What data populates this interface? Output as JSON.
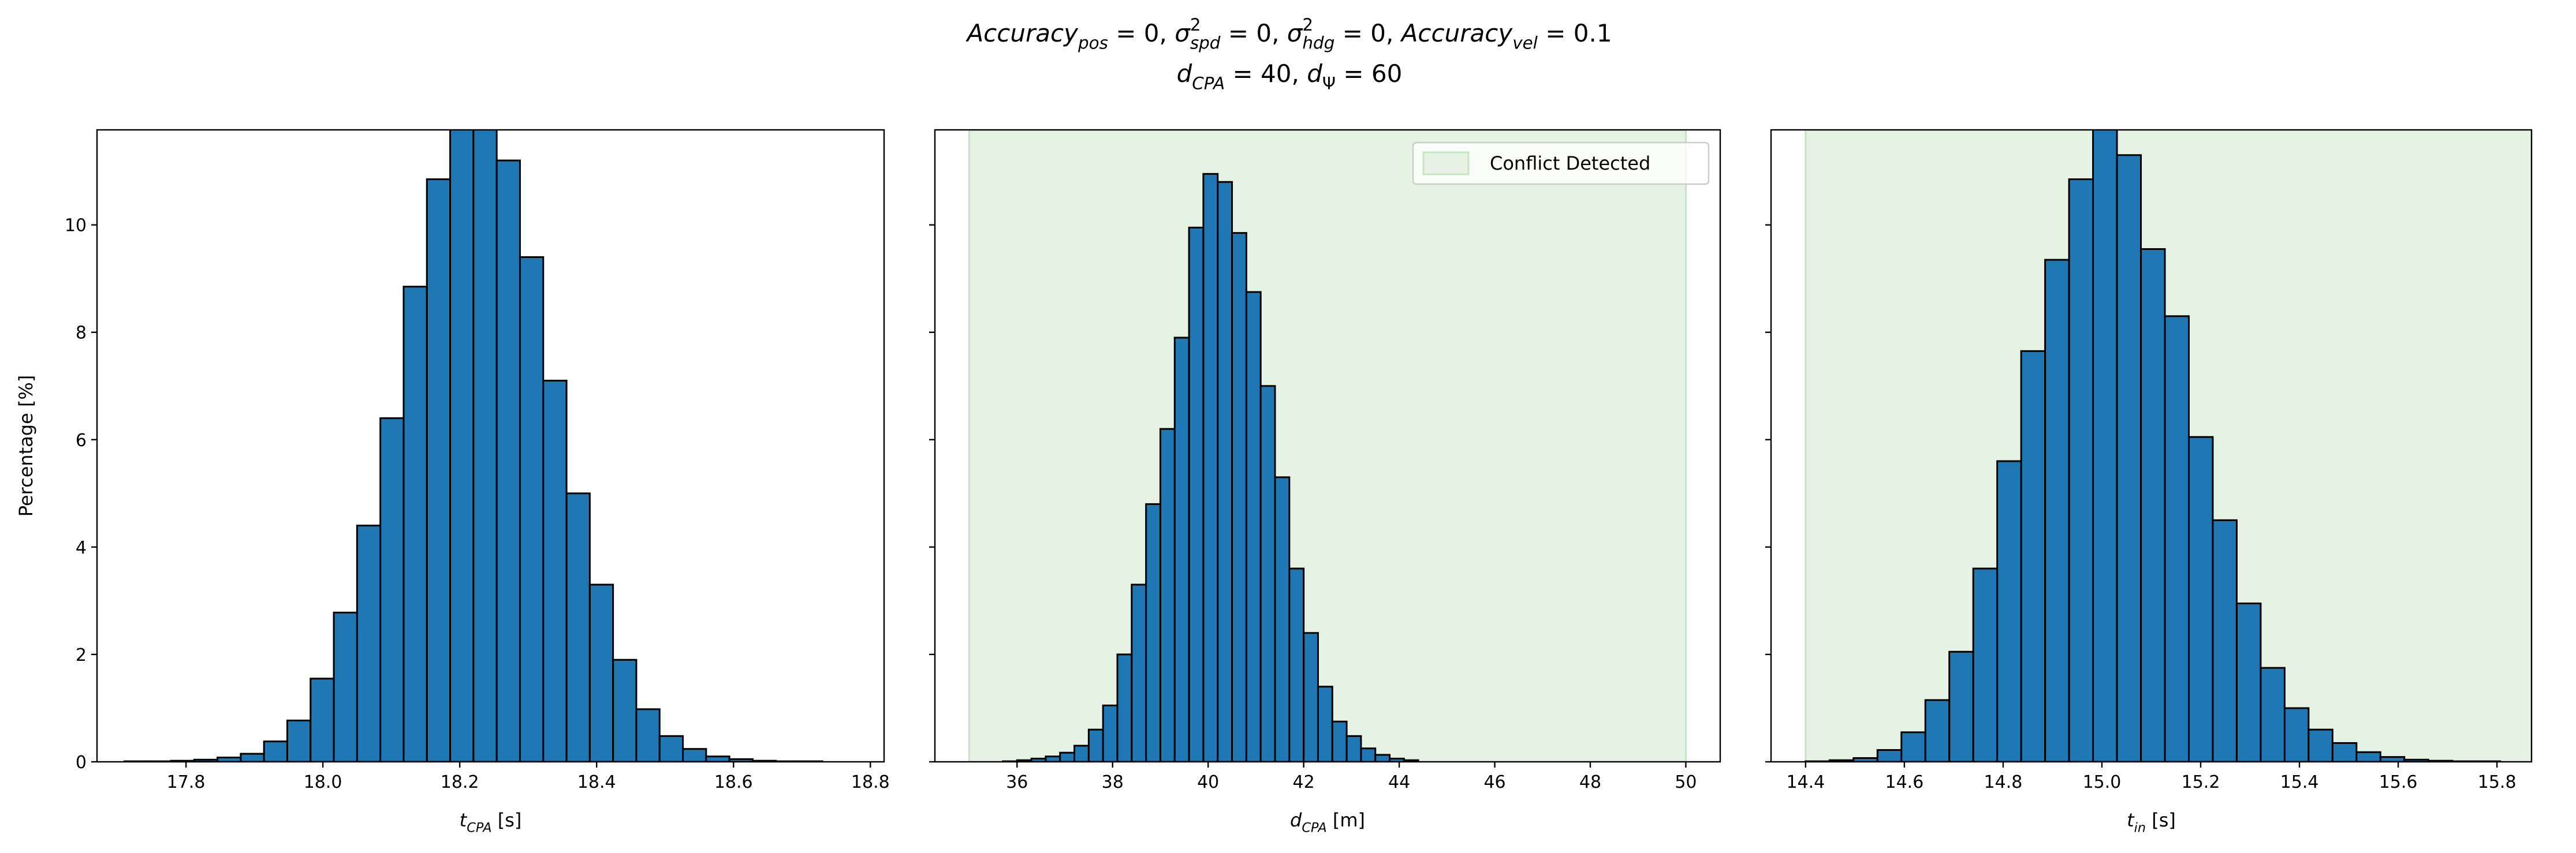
{
  "title": [
    [
      {
        "text": "Accuracy",
        "italic": true
      },
      {
        "text": "pos",
        "shift": "sub",
        "italic": true
      },
      {
        "text": " = 0, "
      },
      {
        "text": "σ",
        "italic": true
      },
      {
        "text": "2",
        "shift": "sup"
      },
      {
        "text": "spd",
        "shift": "sub",
        "italic": true
      },
      {
        "text": " = 0, "
      },
      {
        "text": "σ",
        "italic": true
      },
      {
        "text": "2",
        "shift": "sup"
      },
      {
        "text": "hdg",
        "shift": "sub",
        "italic": true
      },
      {
        "text": " = 0, "
      },
      {
        "text": "Accuracy",
        "italic": true
      },
      {
        "text": "vel",
        "shift": "sub",
        "italic": true
      },
      {
        "text": " = 0.1"
      }
    ],
    [
      {
        "text": "d",
        "italic": true
      },
      {
        "text": "CPA",
        "shift": "sub",
        "italic": true
      },
      {
        "text": " = 40, "
      },
      {
        "text": "d",
        "italic": true
      },
      {
        "text": "Ψ",
        "shift": "sub"
      },
      {
        "text": " = 60"
      }
    ]
  ],
  "chart_data": [
    {
      "type": "histogram",
      "color": "#1f77b4",
      "edgecolor": "#000000",
      "ylabel": "Percentage [%]",
      "xlabel": [
        {
          "text": "t",
          "italic": true
        },
        {
          "text": "CPA",
          "shift": "sub",
          "italic": true
        },
        {
          "text": " [s]"
        }
      ],
      "bins": [
        17.71,
        17.744,
        17.778,
        17.812,
        17.846,
        17.88,
        17.914,
        17.948,
        17.982,
        18.016,
        18.05,
        18.084,
        18.118,
        18.152,
        18.186,
        18.22,
        18.254,
        18.288,
        18.322,
        18.356,
        18.39,
        18.424,
        18.458,
        18.492,
        18.526,
        18.56,
        18.594,
        18.628,
        18.662,
        18.696,
        18.73
      ],
      "values": [
        0.01,
        0.01,
        0.02,
        0.04,
        0.08,
        0.15,
        0.38,
        0.77,
        1.55,
        2.78,
        4.4,
        6.4,
        8.85,
        10.85,
        12.0,
        12.3,
        11.2,
        9.4,
        7.1,
        5.0,
        3.3,
        1.9,
        0.98,
        0.48,
        0.24,
        0.1,
        0.05,
        0.02,
        0.01,
        0.01
      ],
      "xlim": [
        17.67,
        18.82
      ],
      "xticks": [
        17.8,
        {
          "value": 18,
          "label": "18.0"
        },
        18.2,
        18.4,
        18.6,
        18.8
      ],
      "ylim": [
        0,
        11.77
      ],
      "yticks": [
        0,
        2,
        4,
        6,
        8,
        10
      ],
      "ytick_labels": true
    },
    {
      "type": "histogram",
      "color": "#1f77b4",
      "edgecolor": "#000000",
      "xlabel": [
        {
          "text": "d",
          "italic": true
        },
        {
          "text": "CPA",
          "shift": "sub",
          "italic": true
        },
        {
          "text": " [m]"
        }
      ],
      "span": [
        35.0,
        50.0
      ],
      "span_color": "#e6f2e4",
      "span_edge": "#c9e3c6",
      "legend": {
        "label": "Conflict Detected",
        "loc": "upper right"
      },
      "bins": [
        35.7,
        36.0,
        36.3,
        36.6,
        36.9,
        37.2,
        37.5,
        37.8,
        38.1,
        38.4,
        38.7,
        39.0,
        39.3,
        39.6,
        39.9,
        40.2,
        40.5,
        40.8,
        41.1,
        41.4,
        41.7,
        42.0,
        42.3,
        42.6,
        42.9,
        43.2,
        43.5,
        43.8,
        44.1,
        44.4
      ],
      "values": [
        0.01,
        0.03,
        0.06,
        0.1,
        0.17,
        0.3,
        0.6,
        1.05,
        2.0,
        3.3,
        4.8,
        6.2,
        7.9,
        9.95,
        10.95,
        10.8,
        9.85,
        8.75,
        7.0,
        5.3,
        3.6,
        2.4,
        1.4,
        0.75,
        0.48,
        0.25,
        0.13,
        0.06,
        0.03
      ],
      "xlim": [
        34.28,
        50.72
      ],
      "xticks": [
        36,
        38,
        40,
        42,
        44,
        46,
        48,
        50
      ],
      "ylim": [
        0,
        11.77
      ],
      "yticks": [
        0,
        2,
        4,
        6,
        8,
        10
      ],
      "ytick_labels": false
    },
    {
      "type": "histogram",
      "color": "#1f77b4",
      "edgecolor": "#000000",
      "xlabel": [
        {
          "text": "t",
          "italic": true
        },
        {
          "text": "in",
          "shift": "sub",
          "italic": true
        },
        {
          "text": " [s]"
        }
      ],
      "span": [
        14.4,
        15.87
      ],
      "span_color": "#e6f2e4",
      "span_edge": "#c9e3c6",
      "bins": [
        14.4,
        14.4485,
        14.497,
        14.5455,
        14.594,
        14.6425,
        14.691,
        14.7395,
        14.788,
        14.8365,
        14.885,
        14.9335,
        14.982,
        15.0305,
        15.079,
        15.1275,
        15.176,
        15.2245,
        15.273,
        15.3215,
        15.37,
        15.4185,
        15.467,
        15.5155,
        15.564,
        15.6125,
        15.661,
        15.7095,
        15.758,
        15.8065
      ],
      "values": [
        0.01,
        0.03,
        0.07,
        0.22,
        0.55,
        1.15,
        2.05,
        3.6,
        5.6,
        7.65,
        9.35,
        10.85,
        12.0,
        11.3,
        9.55,
        8.3,
        6.05,
        4.5,
        2.95,
        1.75,
        1.0,
        0.6,
        0.35,
        0.18,
        0.09,
        0.04,
        0.02,
        0.01,
        0.01
      ],
      "xlim": [
        14.33,
        15.87
      ],
      "xticks": [
        14.4,
        14.6,
        14.8,
        {
          "value": 15,
          "label": "15.0"
        },
        15.2,
        15.4,
        15.6,
        15.8
      ],
      "ylim": [
        0,
        11.77
      ],
      "yticks": [
        0,
        2,
        4,
        6,
        8,
        10
      ],
      "ytick_labels": false
    }
  ]
}
